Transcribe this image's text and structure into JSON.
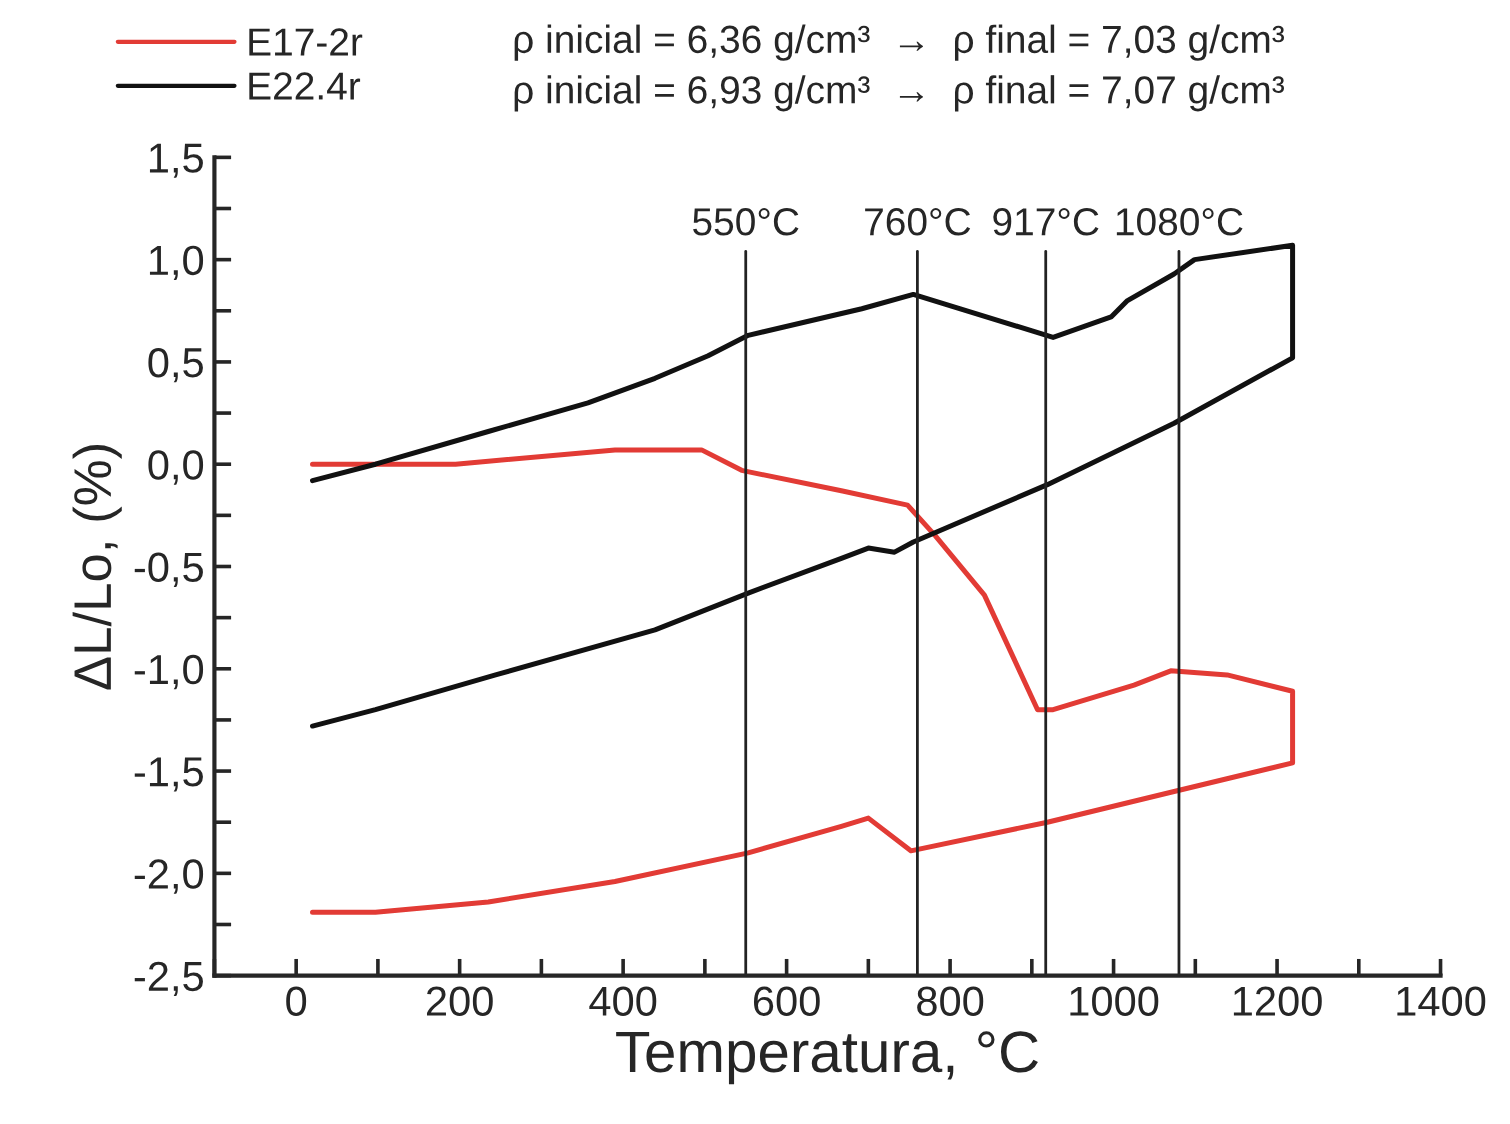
{
  "chart_data": {
    "type": "line",
    "xlabel": "Temperatura, °C",
    "ylabel": "ΔL/Lo, (%)",
    "xlim": [
      -100,
      1400
    ],
    "ylim": [
      -2.5,
      1.5
    ],
    "xticks": [
      {
        "value": -100,
        "label": null
      },
      0,
      {
        "value": 100,
        "label": null
      },
      200,
      {
        "value": 300,
        "label": null
      },
      400,
      {
        "value": 500,
        "label": null
      },
      600,
      {
        "value": 700,
        "label": null
      },
      800,
      {
        "value": 900,
        "label": null
      },
      1000,
      {
        "value": 1100,
        "label": null
      },
      1200,
      {
        "value": 1300,
        "label": null
      },
      1400
    ],
    "yticks": [
      {
        "value": -2.5,
        "label": "-2,5"
      },
      {
        "value": -2.25,
        "label": null
      },
      {
        "value": -2.0,
        "label": "-2,0"
      },
      {
        "value": -1.75,
        "label": null
      },
      {
        "value": -1.5,
        "label": "-1,5"
      },
      {
        "value": -1.25,
        "label": null
      },
      {
        "value": -1.0,
        "label": "-1,0"
      },
      {
        "value": -0.75,
        "label": null
      },
      {
        "value": -0.5,
        "label": "-0,5"
      },
      {
        "value": -0.25,
        "label": null
      },
      {
        "value": 0.0,
        "label": "0,0"
      },
      {
        "value": 0.25,
        "label": null
      },
      {
        "value": 0.5,
        "label": "0,5"
      },
      {
        "value": 0.75,
        "label": null
      },
      {
        "value": 1.0,
        "label": "1,0"
      },
      {
        "value": 1.25,
        "label": null
      },
      {
        "value": 1.5,
        "label": "1,5"
      }
    ],
    "grid": false,
    "legend": "top left",
    "marker": "none",
    "line_style": "solid",
    "series": [
      {
        "name": "E17-2r",
        "color": "#e23b35",
        "x": [
          20,
          195,
          390,
          496,
          545,
          667,
          748,
          782,
          842,
          907,
          926,
          1025,
          1070,
          1139,
          1219,
          1219,
          1074,
          919,
          752,
          700,
          667,
          553,
          390,
          235,
          97,
          20
        ],
        "values": [
          0.0,
          0.0,
          0.07,
          0.07,
          -0.03,
          -0.13,
          -0.2,
          -0.35,
          -0.64,
          -1.2,
          -1.2,
          -1.08,
          -1.01,
          -1.03,
          -1.11,
          -1.46,
          -1.6,
          -1.75,
          -1.89,
          -1.73,
          -1.77,
          -1.9,
          -2.04,
          -2.14,
          -2.19,
          -2.19
        ]
      },
      {
        "name": "E22.4r",
        "color": "#111111",
        "x": [
          20,
          97,
          235,
          357,
          439,
          504,
          553,
          692,
          755,
          926,
          997,
          1017,
          1074,
          1099,
          1219,
          1219,
          1074,
          919,
          755,
          732,
          700,
          667,
          553,
          439,
          244,
          97,
          20
        ],
        "values": [
          -0.08,
          0.0,
          0.16,
          0.3,
          0.42,
          0.53,
          0.63,
          0.76,
          0.83,
          0.62,
          0.72,
          0.8,
          0.93,
          1.0,
          1.07,
          0.52,
          0.2,
          -0.1,
          -0.38,
          -0.43,
          -0.41,
          -0.46,
          -0.63,
          -0.81,
          -1.03,
          -1.2,
          -1.28
        ]
      }
    ],
    "ref_lines": [
      {
        "axis": "x",
        "value": 550,
        "label": "550°C",
        "color": "#222222"
      },
      {
        "axis": "x",
        "value": 760,
        "label": "760°C",
        "color": "#222222"
      },
      {
        "axis": "x",
        "value": 917,
        "label": "917°C",
        "color": "#222222"
      },
      {
        "axis": "x",
        "value": 1080,
        "label": "1080°C",
        "color": "#222222"
      }
    ],
    "annotations": [
      "ρ inicial = 6,36 g/cm³  →  ρ final = 7,03 g/cm³",
      "ρ inicial = 6,93 g/cm³  →  ρ final = 7,07 g/cm³"
    ]
  }
}
